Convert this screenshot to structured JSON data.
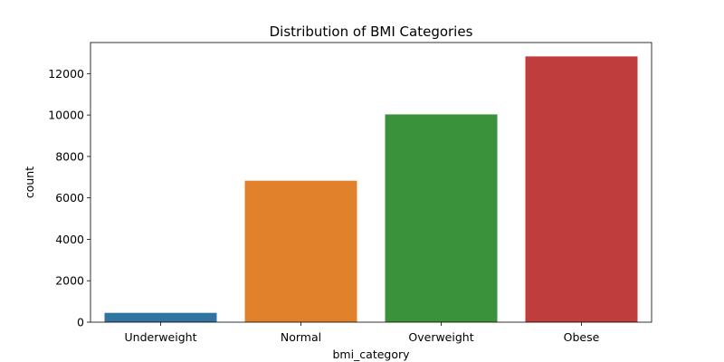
{
  "chart_data": {
    "type": "bar",
    "title": "Distribution of BMI Categories",
    "xlabel": "bmi_category",
    "ylabel": "count",
    "categories": [
      "Underweight",
      "Normal",
      "Overweight",
      "Obese"
    ],
    "values": [
      450,
      6830,
      10030,
      12830
    ],
    "colors": [
      "#3274a1",
      "#e1812c",
      "#3a923a",
      "#c03d3e"
    ],
    "ylim": [
      0,
      13500
    ],
    "yticks": [
      0,
      2000,
      4000,
      6000,
      8000,
      10000,
      12000
    ],
    "grid": false
  }
}
